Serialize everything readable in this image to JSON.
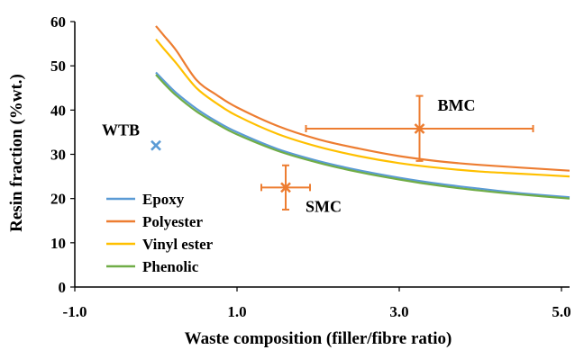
{
  "chart_data": {
    "type": "line",
    "xlabel": "Waste composition (filler/fibre ratio)",
    "ylabel": "Resin fraction (%wt.)",
    "xlim": [
      -1.0,
      5.1
    ],
    "ylim": [
      0,
      60
    ],
    "x_ticks": [
      -1.0,
      1.0,
      3.0,
      5.0
    ],
    "x_tick_labels": [
      "-1.0",
      "1.0",
      "3.0",
      "5.0"
    ],
    "y_ticks": [
      0,
      10,
      20,
      30,
      40,
      50,
      60
    ],
    "y_tick_labels": [
      "0",
      "10",
      "20",
      "30",
      "40",
      "50",
      "60"
    ],
    "grid": false,
    "legend_position": "bottom-left",
    "series": [
      {
        "name": "Epoxy",
        "color": "#5b9bd5",
        "x": [
          0,
          0.1,
          0.25,
          0.5,
          0.75,
          1.0,
          1.5,
          2.0,
          2.5,
          3.0,
          3.5,
          4.0,
          4.5,
          5.1
        ],
        "y": [
          48.5,
          46.6,
          43.9,
          40.3,
          37.4,
          35.0,
          31.2,
          28.5,
          26.4,
          24.7,
          23.3,
          22.2,
          21.2,
          20.3
        ]
      },
      {
        "name": "Polyester",
        "color": "#ed7d31",
        "x": [
          0,
          0.1,
          0.25,
          0.5,
          0.75,
          1.0,
          1.5,
          2.0,
          2.5,
          3.0,
          3.5,
          4.0,
          4.5,
          5.1
        ],
        "y": [
          59.0,
          56.8,
          53.5,
          46.8,
          43.4,
          40.6,
          36.4,
          33.4,
          31.3,
          29.6,
          28.4,
          27.6,
          27.0,
          26.3
        ]
      },
      {
        "name": "Vinyl ester",
        "color": "#ffc000",
        "x": [
          0,
          0.1,
          0.25,
          0.5,
          0.75,
          1.0,
          1.5,
          2.0,
          2.5,
          3.0,
          3.5,
          4.0,
          4.5,
          5.1
        ],
        "y": [
          56.0,
          53.8,
          50.6,
          45.0,
          41.5,
          38.7,
          34.6,
          31.7,
          29.6,
          28.0,
          26.9,
          26.1,
          25.6,
          25.0
        ]
      },
      {
        "name": "Phenolic",
        "color": "#70ad47",
        "x": [
          0,
          0.1,
          0.25,
          0.5,
          0.75,
          1.0,
          1.5,
          2.0,
          2.5,
          3.0,
          3.5,
          4.0,
          4.5,
          5.1
        ],
        "y": [
          48.0,
          46.0,
          43.3,
          39.7,
          36.9,
          34.5,
          30.8,
          28.1,
          26.0,
          24.3,
          22.9,
          21.8,
          20.9,
          20.0
        ]
      }
    ],
    "points": [
      {
        "label": "WTB",
        "x": 0,
        "y": 32,
        "color": "#5b9bd5"
      },
      {
        "label": "SMC",
        "x": 1.6,
        "y": 22.5,
        "color": "#ed7d31",
        "xerr": [
          1.3,
          1.9
        ],
        "yerr": [
          17.5,
          27.5
        ]
      },
      {
        "label": "BMC",
        "x": 3.25,
        "y": 35.8,
        "color": "#ed7d31",
        "xerr": [
          1.85,
          4.65
        ],
        "yerr": [
          28.5,
          43.2
        ]
      }
    ]
  }
}
